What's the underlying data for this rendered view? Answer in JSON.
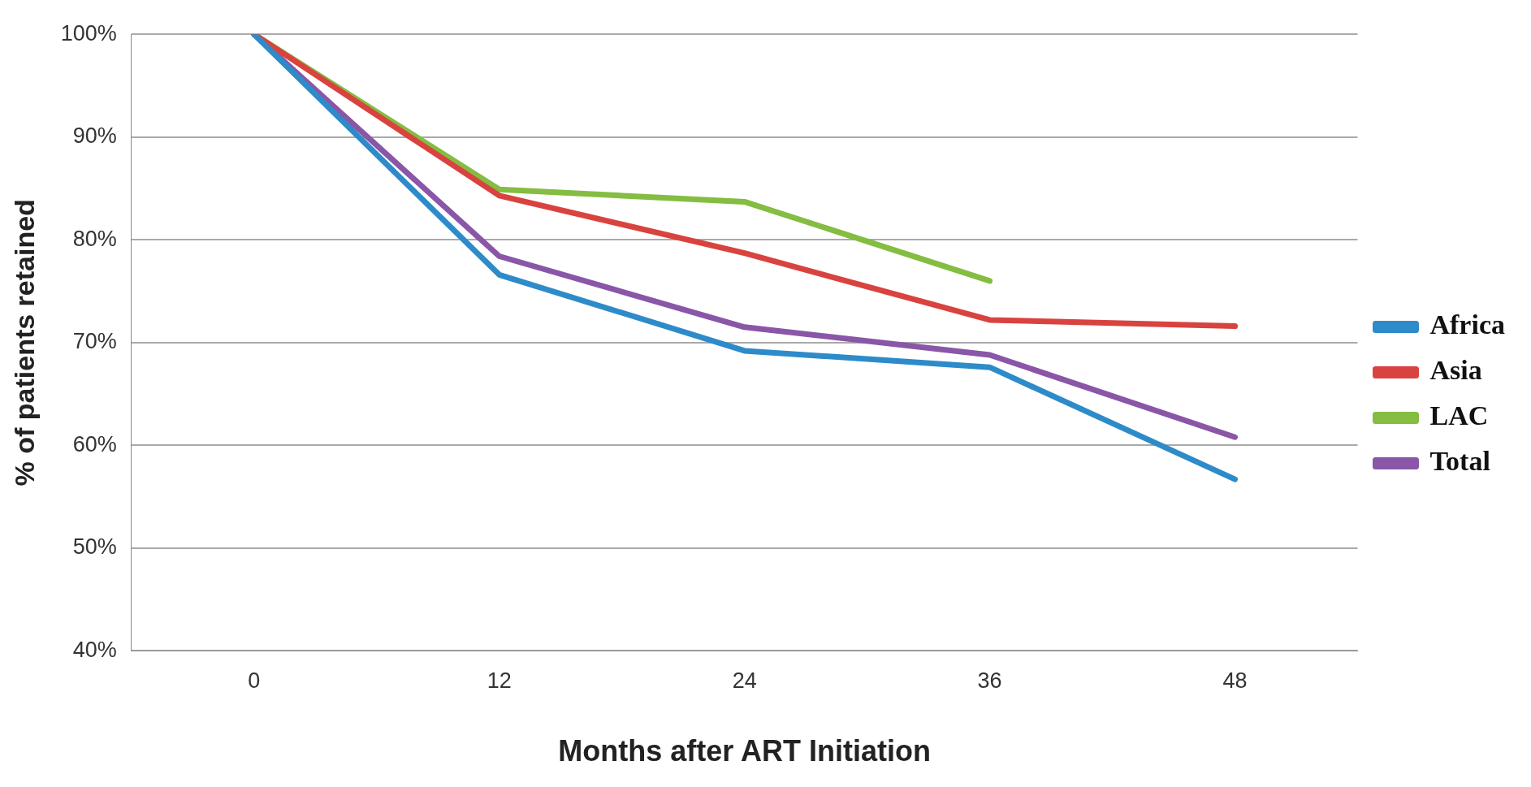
{
  "chart_data": {
    "type": "line",
    "xlabel": "Months after ART Initiation",
    "ylabel": "% of patients retained",
    "categories": [
      "0",
      "12",
      "24",
      "36",
      "48"
    ],
    "series": [
      {
        "name": "Africa",
        "color": "#2e8bc9",
        "values": [
          100,
          76.6,
          69.2,
          67.6,
          56.7
        ]
      },
      {
        "name": "Asia",
        "color": "#d9433f",
        "values": [
          100,
          84.3,
          78.7,
          72.2,
          71.6
        ]
      },
      {
        "name": "LAC",
        "color": "#84bd41",
        "values": [
          100,
          84.9,
          83.7,
          76.0,
          null
        ]
      },
      {
        "name": "Total",
        "color": "#8a56a8",
        "values": [
          100,
          78.4,
          71.5,
          68.8,
          60.8
        ]
      }
    ],
    "ylim": [
      40,
      100
    ],
    "yticks": [
      {
        "value": 40,
        "label": "40%"
      },
      {
        "value": 50,
        "label": "50%"
      },
      {
        "value": 60,
        "label": "60%"
      },
      {
        "value": 70,
        "label": "70%"
      },
      {
        "value": 80,
        "label": "80%"
      },
      {
        "value": 90,
        "label": "90%"
      },
      {
        "value": 100,
        "label": "100%"
      }
    ],
    "grid": "y",
    "legend": "right",
    "marker": "none",
    "line_style": "solid"
  }
}
